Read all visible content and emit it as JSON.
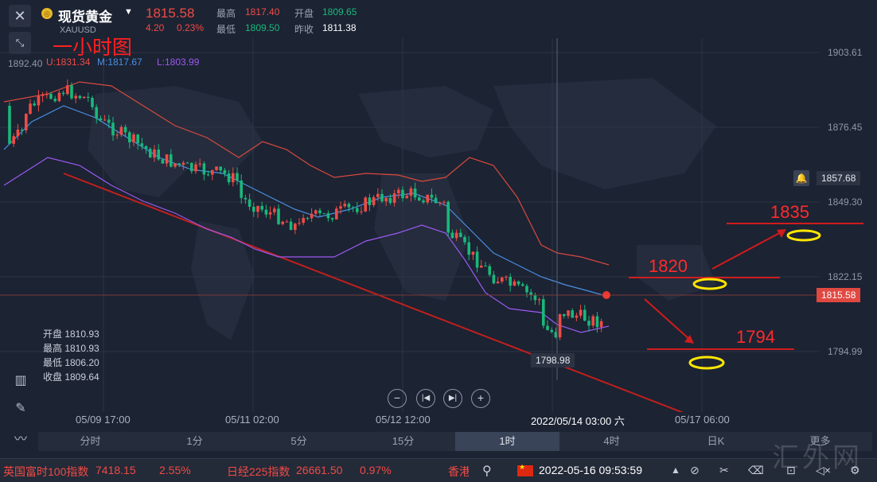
{
  "header": {
    "name": "现货黄金",
    "symbol": "XAUUSD",
    "price": "1815.58",
    "change": "4.20",
    "change_pct": "0.23%",
    "high_label": "最高",
    "high": "1817.40",
    "open_label": "开盘",
    "open": "1809.65",
    "low_label": "最低",
    "low": "1809.50",
    "prev_label": "昨收",
    "prev": "1811.38"
  },
  "annotation_title": "一小时图",
  "indicator": {
    "u": "U:1831.34",
    "m": "M:1817.67",
    "l": "L:1803.99"
  },
  "top_left_value": "1892.40",
  "price_axis": [
    "1903.61",
    "1876.45",
    "1849.30",
    "1822.15",
    "1794.99"
  ],
  "alert_price": "1857.68",
  "current_price_tag": "1815.58",
  "low_marker": "1798.98",
  "time_axis": [
    "05/09 17:00",
    "05/11 02:00",
    "05/12 12:00",
    "05/17 06:00"
  ],
  "crosshair_time": "2022/05/14 03:00 六",
  "ohlc_panel": {
    "open": "开盘 1810.93",
    "high": "最高 1810.93",
    "low": "最低 1806.20",
    "close": "收盘 1809.64"
  },
  "annotations": {
    "a1835": "1835",
    "a1820": "1820",
    "a1794": "1794"
  },
  "timeframes": [
    {
      "label": "分时"
    },
    {
      "label": "1分"
    },
    {
      "label": "5分"
    },
    {
      "label": "15分"
    },
    {
      "label": "1时",
      "active": true
    },
    {
      "label": "4时"
    },
    {
      "label": "日K"
    },
    {
      "label": "更多"
    }
  ],
  "ticker": {
    "idx1_name": "英国富时100指数",
    "idx1_value": "7418.15",
    "idx1_change": "2.55%",
    "idx2_name": "日经225指数",
    "idx2_value": "26661.50",
    "idx2_change": "0.97%",
    "idx3_name": "香港",
    "datetime": "2022-05-16 09:53:59"
  },
  "watermark": "汇外网",
  "colors": {
    "up": "#ef4b45",
    "down": "#19b87a",
    "mid": "#4a90e2",
    "lower": "#9b59f0",
    "upper": "#d9493e",
    "trend": "#c0201c",
    "annot": "#ff2b2b",
    "ellipse": "#ffe600"
  }
}
